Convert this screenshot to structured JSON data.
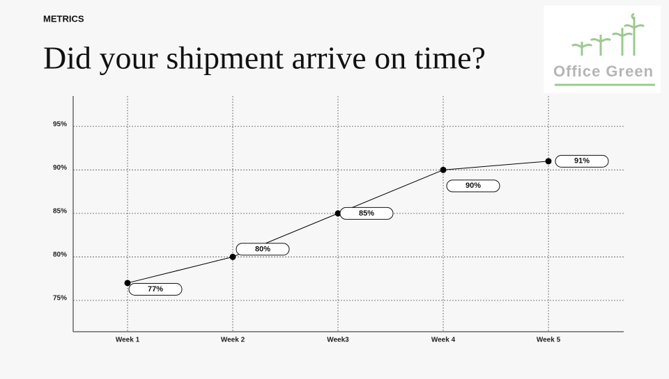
{
  "header": "METRICS",
  "title": "Did your shipment arrive on time?",
  "logo": "Office Green",
  "chart_data": {
    "type": "line",
    "categories": [
      "Week 1",
      "Week 2",
      "Week3",
      "Week 4",
      "Week 5"
    ],
    "values": [
      77,
      80,
      85,
      90,
      91
    ],
    "value_labels": [
      "77%",
      "80%",
      "85%",
      "90%",
      "91%"
    ],
    "color": "#000000",
    "ylim": [
      71.4,
      98.5
    ],
    "yticks": [
      {
        "value": 75,
        "label": "75%"
      },
      {
        "value": 80,
        "label": "80%"
      },
      {
        "value": 85,
        "label": "85%"
      },
      {
        "value": 90,
        "label": "90%"
      },
      {
        "value": 95,
        "label": "95%"
      }
    ],
    "grid": true
  }
}
